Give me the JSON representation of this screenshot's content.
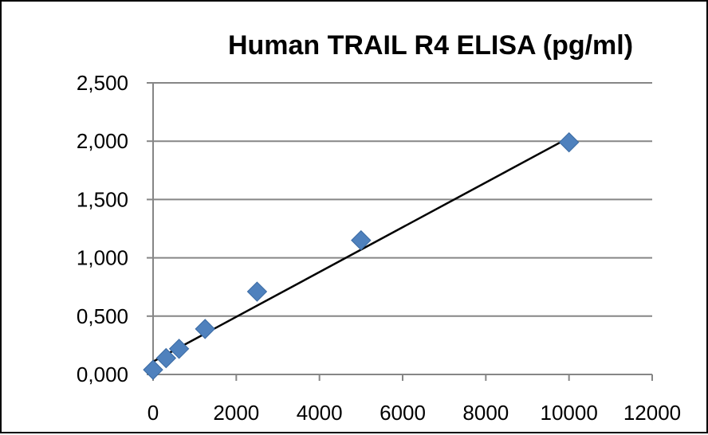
{
  "chart_data": {
    "type": "scatter",
    "title": "Human TRAIL R4 ELISA (pg/ml)",
    "xlabel": "",
    "ylabel": "",
    "xlim": [
      0,
      12000
    ],
    "ylim": [
      0,
      2.5
    ],
    "x_ticks": [
      "0",
      "2000",
      "4000",
      "6000",
      "8000",
      "10000",
      "12000"
    ],
    "y_ticks": [
      "0,000",
      "0,500",
      "1,000",
      "1,500",
      "2,000",
      "2,500"
    ],
    "x_tick_values": [
      0,
      2000,
      4000,
      6000,
      8000,
      10000,
      12000
    ],
    "y_tick_values": [
      0,
      0.5,
      1.0,
      1.5,
      2.0,
      2.5
    ],
    "grid": "horizontal",
    "legend": "none",
    "series": [
      {
        "x": [
          0,
          312.5,
          625,
          1250,
          2500,
          5000,
          10000
        ],
        "y": [
          0.04,
          0.14,
          0.22,
          0.39,
          0.71,
          1.15,
          1.99
        ],
        "marker": "diamond",
        "color": "#4f81bd"
      }
    ],
    "trendline": {
      "type": "linear",
      "x": [
        0,
        10000
      ],
      "y": [
        0.11,
        2.03
      ],
      "color": "#000000"
    }
  }
}
